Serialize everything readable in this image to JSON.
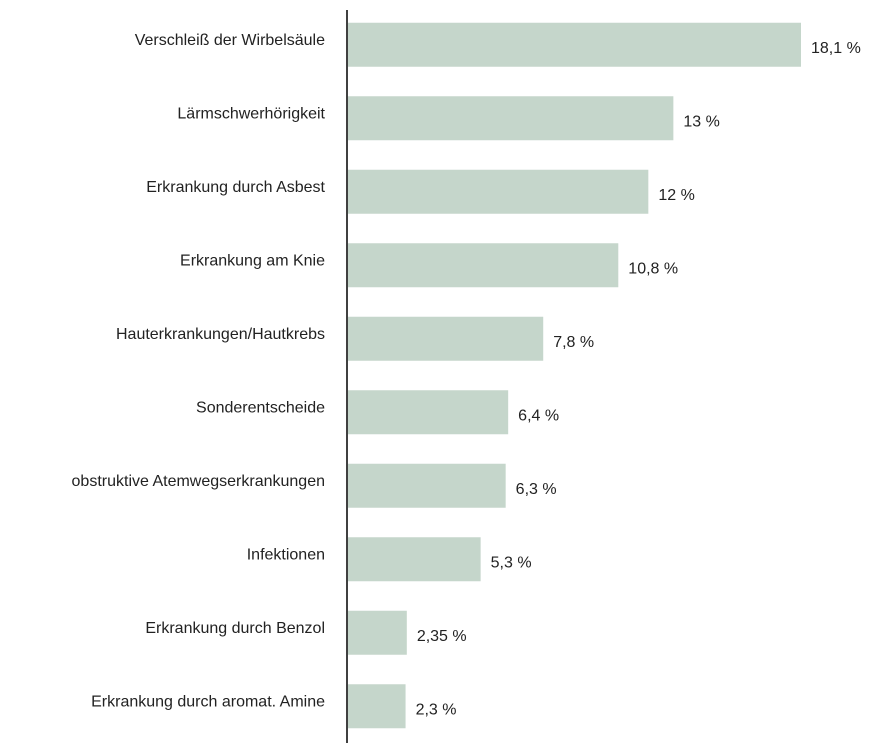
{
  "chart_data": {
    "type": "bar",
    "orientation": "horizontal",
    "categories": [
      "Verschleiß der Wirbelsäule",
      "Lärmschwerhörigkeit",
      "Erkrankung durch Asbest",
      "Erkrankung am Knie",
      "Hauterkrankungen/Hautkrebs",
      "Sonderentscheide",
      "obstruktive Atemwegserkrankungen",
      "Infektionen",
      "Erkrankung durch Benzol",
      "Erkrankung durch aromat. Amine"
    ],
    "values": [
      18.1,
      13,
      12,
      10.8,
      7.8,
      6.4,
      6.3,
      5.3,
      2.35,
      2.3
    ],
    "value_labels": [
      "18,1 %",
      "13 %",
      "12 %",
      "10,8 %",
      "7,8 %",
      "6,4 %",
      "6,3 %",
      "5,3 %",
      "2,35 %",
      "2,3 %"
    ],
    "color": "#c5d6cb"
  }
}
